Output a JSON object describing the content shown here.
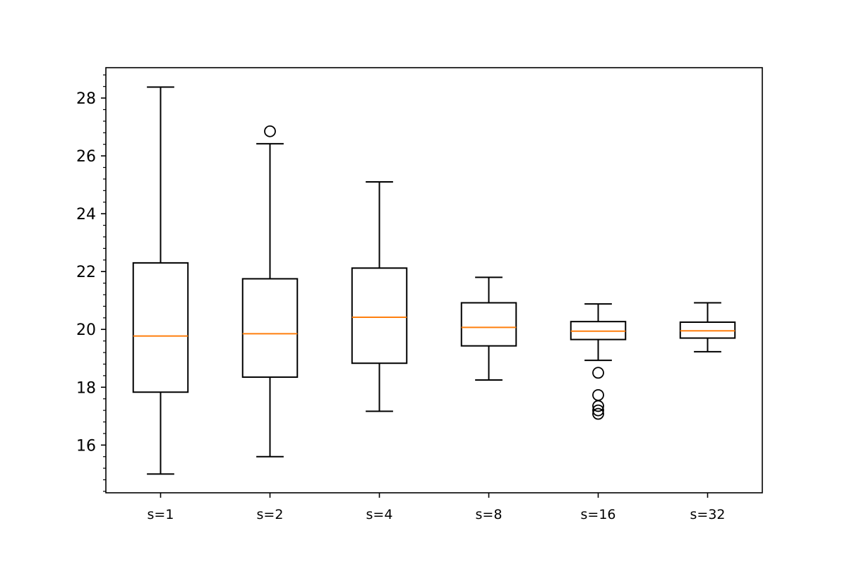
{
  "chart_data": {
    "type": "box",
    "title": "",
    "xlabel": "",
    "ylabel": "",
    "ylim": [
      14.35,
      29.05
    ],
    "yticks": [
      16,
      18,
      20,
      22,
      24,
      26,
      28
    ],
    "yticks_minor_step": 0.4,
    "categories": [
      "s=1",
      "s=2",
      "s=4",
      "s=8",
      "s=16",
      "s=32"
    ],
    "boxes": [
      {
        "label": "s=1",
        "whisker_low": 15.0,
        "q1": 17.83,
        "median": 19.77,
        "q3": 22.3,
        "whisker_high": 28.38,
        "outliers": []
      },
      {
        "label": "s=2",
        "whisker_low": 15.6,
        "q1": 18.35,
        "median": 19.85,
        "q3": 21.75,
        "whisker_high": 26.42,
        "outliers": [
          26.85
        ]
      },
      {
        "label": "s=4",
        "whisker_low": 17.17,
        "q1": 18.83,
        "median": 20.42,
        "q3": 22.12,
        "whisker_high": 25.1,
        "outliers": []
      },
      {
        "label": "s=8",
        "whisker_low": 18.25,
        "q1": 19.43,
        "median": 20.07,
        "q3": 20.92,
        "whisker_high": 21.8,
        "outliers": []
      },
      {
        "label": "s=16",
        "whisker_low": 18.93,
        "q1": 19.65,
        "median": 19.94,
        "q3": 20.27,
        "whisker_high": 20.88,
        "outliers": [
          18.5,
          17.73,
          17.35,
          17.2,
          17.08
        ]
      },
      {
        "label": "s=32",
        "whisker_low": 19.23,
        "q1": 19.7,
        "median": 19.95,
        "q3": 20.25,
        "whisker_high": 20.92,
        "outliers": []
      }
    ],
    "colors": {
      "box": "#000000",
      "median": "#ff7f0e",
      "outlier": "#000000",
      "axes": "#000000",
      "background": "#ffffff"
    },
    "grid": false,
    "legend": "none"
  }
}
